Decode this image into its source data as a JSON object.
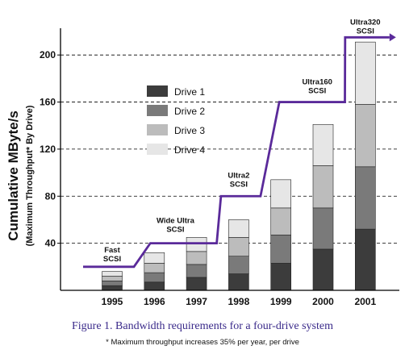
{
  "chart_data": {
    "type": "bar",
    "stacked": true,
    "categories": [
      "1995",
      "1996",
      "1997",
      "1998",
      "1999",
      "2000",
      "2001"
    ],
    "series": [
      {
        "name": "Drive 1",
        "color": "#3c3c3c",
        "values": [
          4,
          7,
          11,
          14,
          23,
          35,
          52
        ]
      },
      {
        "name": "Drive 2",
        "color": "#7a7a7a",
        "values": [
          4,
          8,
          11,
          15,
          24,
          35,
          53
        ]
      },
      {
        "name": "Drive 3",
        "color": "#bcbcbc",
        "values": [
          4,
          8,
          11,
          16,
          23,
          36,
          53
        ]
      },
      {
        "name": "Drive 4",
        "color": "#e6e6e6",
        "values": [
          4,
          9,
          12,
          15,
          24,
          35,
          53
        ]
      }
    ],
    "ylim": [
      0,
      220
    ],
    "yticks": [
      40,
      80,
      120,
      160,
      200
    ],
    "grid": true,
    "legend_position": "upper-left",
    "ylabel": "Cumulative MByte/s",
    "ylabel_sub": "(Maximum Throughput* By Drive)",
    "max_throughput_line": {
      "color": "#5a2a9a",
      "steps": [
        {
          "label": "Fast SCSI",
          "value": 20
        },
        {
          "label": "Wide Ultra SCSI",
          "value": 40
        },
        {
          "label": "Ultra2 SCSI",
          "value": 80
        },
        {
          "label": "Ultra160 SCSI",
          "value": 160
        },
        {
          "label": "Ultra320 SCSI",
          "value": 215
        }
      ]
    }
  },
  "caption": "Figure 1.  Bandwidth requirements for a four-drive system",
  "footnote": "* Maximum  throughput  increases 35% per year, per drive"
}
